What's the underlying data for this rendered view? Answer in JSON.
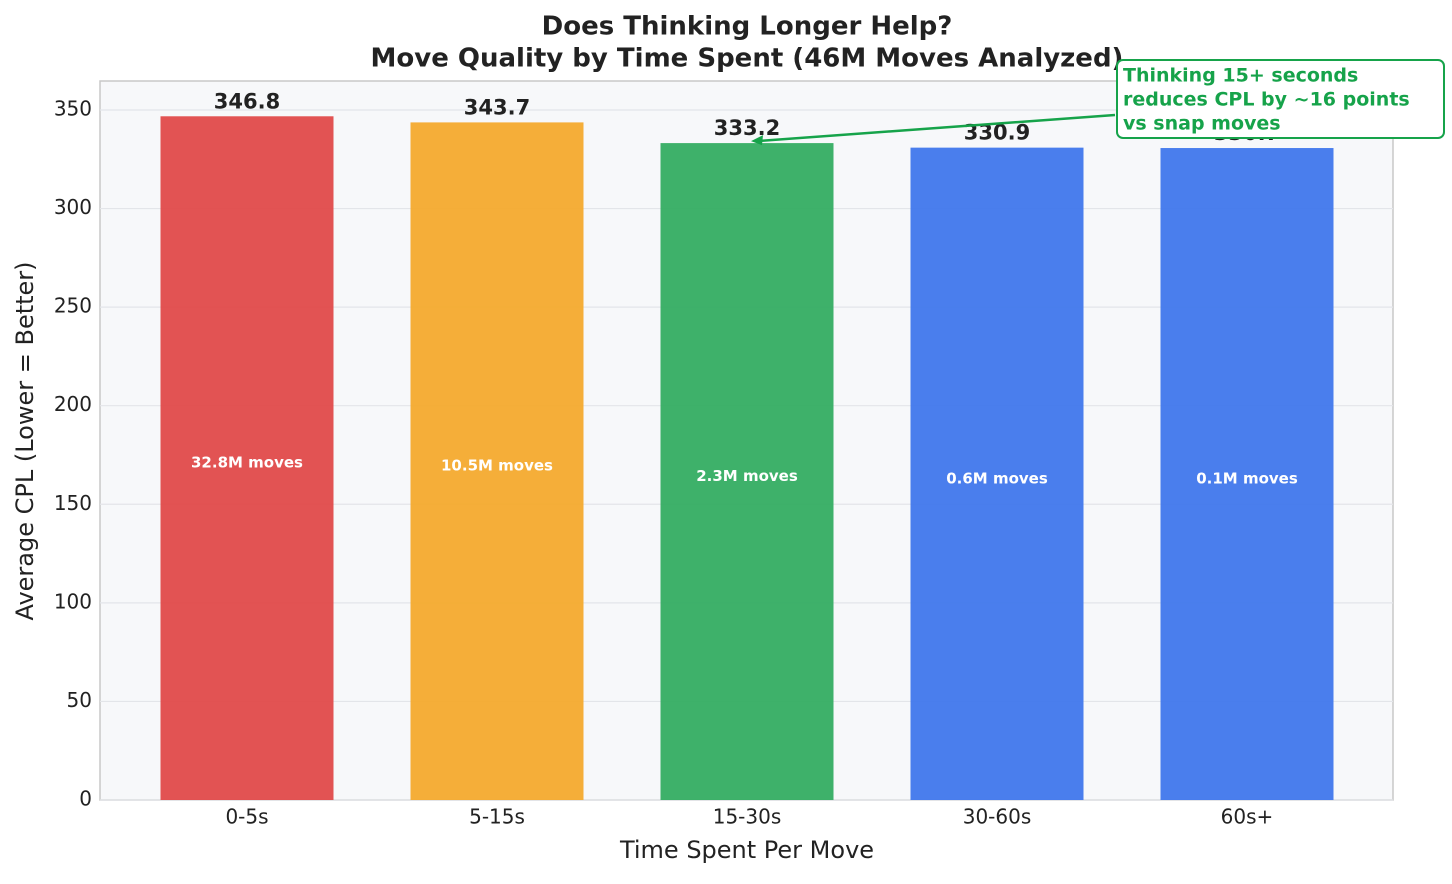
{
  "chart_data": {
    "type": "bar",
    "title": [
      "Does Thinking Longer Help?",
      "Move Quality by Time Spent (46M Moves Analyzed)"
    ],
    "x_label": "Time Spent Per Move",
    "y_label": "Average CPL (Lower = Better)",
    "categories": [
      "0-5s",
      "5-15s",
      "15-30s",
      "30-60s",
      "60s+"
    ],
    "values": [
      346.8,
      343.7,
      333.2,
      330.9,
      330.7
    ],
    "colors": [
      "#e04a4a",
      "#f4aa2e",
      "#34ad62",
      "#4077ec",
      "#4077ec"
    ],
    "bar_labels": [
      "32.8M moves",
      "10.5M moves",
      "2.3M moves",
      "0.6M moves",
      "0.1M moves"
    ],
    "ylim": [
      0,
      364.7
    ],
    "yticks": [
      0,
      50,
      100,
      150,
      200,
      250,
      300,
      350
    ],
    "grid": true,
    "annotation": {
      "lines": [
        "Thinking 15+ seconds",
        "reduces CPL by ~16 points",
        "vs snap moves"
      ],
      "color": "#16a34a",
      "target": 2
    }
  }
}
